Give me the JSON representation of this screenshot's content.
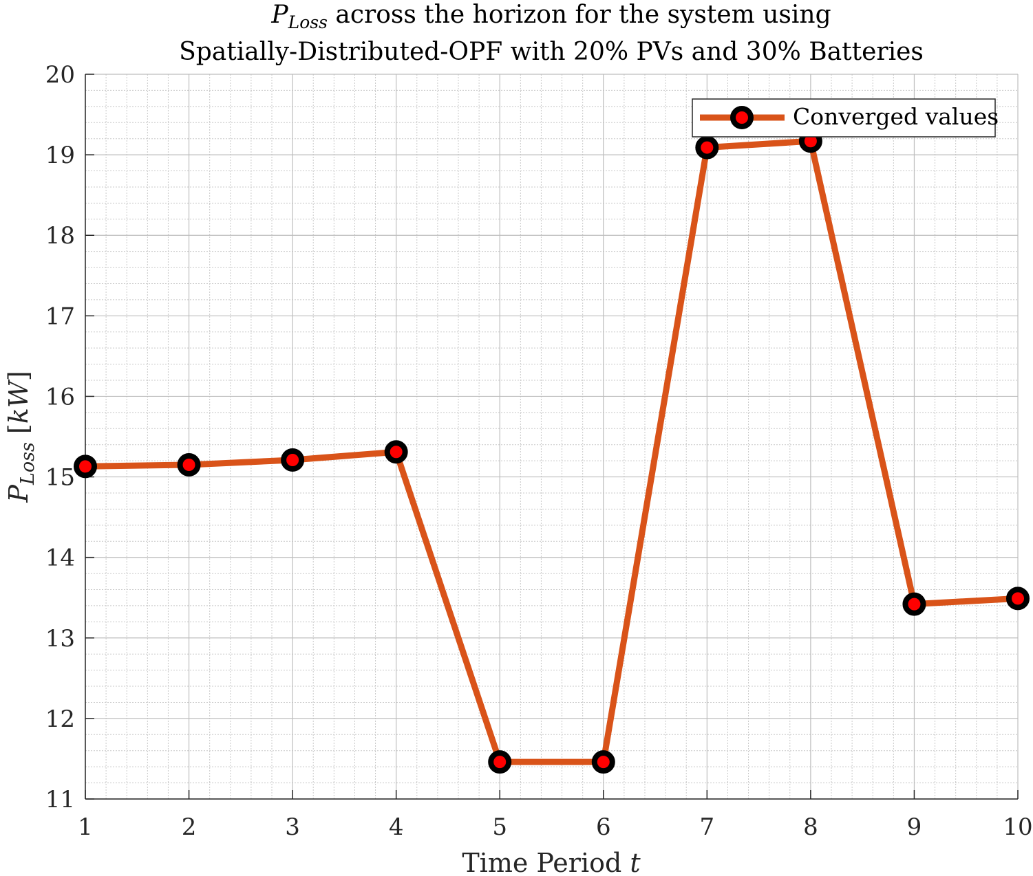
{
  "chart_data": {
    "type": "line",
    "title": {
      "line1_symbol": "P",
      "line1_subscript": "Loss",
      "line1_rest": " across the horizon for the system using",
      "line2": "Spatially-Distributed-OPF with 20% PVs and 30% Batteries"
    },
    "xlabel": {
      "text": "Time Period ",
      "var": "t"
    },
    "ylabel": {
      "symbol": "P",
      "subscript": "Loss",
      "unit_open": " [",
      "unit": "kW",
      "unit_close": "]"
    },
    "x": [
      1,
      2,
      3,
      4,
      5,
      6,
      7,
      8,
      9,
      10
    ],
    "series": [
      {
        "name": "Converged values",
        "values": [
          15.13,
          15.15,
          15.21,
          15.31,
          11.46,
          11.46,
          19.09,
          19.17,
          13.42,
          13.49
        ],
        "line_color": "#D95319",
        "marker_edge_color": "#000000",
        "marker_face_color": "#FF0000"
      }
    ],
    "xlim": [
      1,
      10
    ],
    "ylim": [
      11,
      20
    ],
    "xticks": [
      "1",
      "2",
      "3",
      "4",
      "5",
      "6",
      "7",
      "8",
      "9",
      "10"
    ],
    "yticks": [
      "11",
      "12",
      "13",
      "14",
      "15",
      "16",
      "17",
      "18",
      "19",
      "20"
    ],
    "grid": true,
    "minor_grid": true,
    "legend_position": "top-right"
  }
}
